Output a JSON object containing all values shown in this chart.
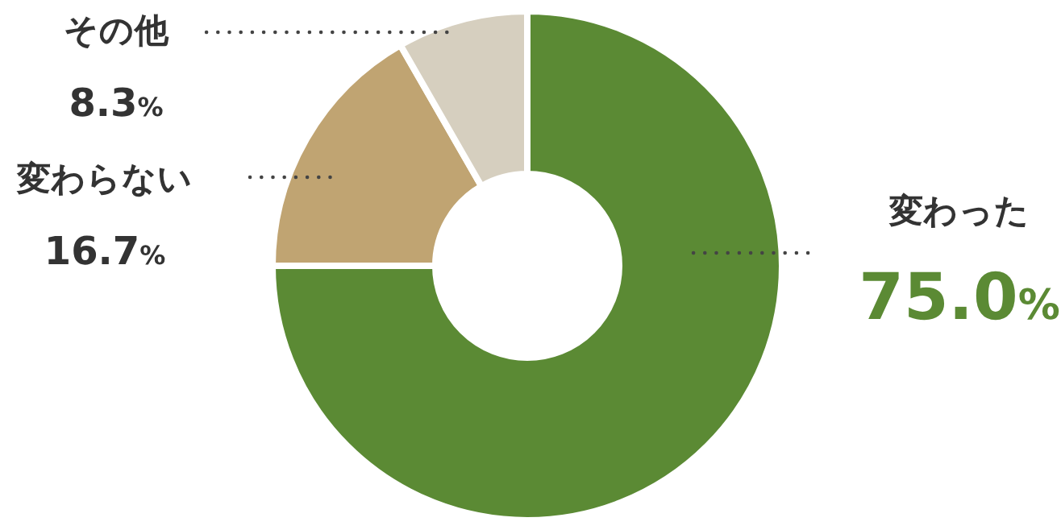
{
  "chart_data": {
    "type": "donut",
    "categories": [
      "変わった",
      "変わらない",
      "その他"
    ],
    "values": [
      75.0,
      16.7,
      8.3
    ],
    "value_labels": [
      "75.0%",
      "16.7%",
      "8.3%"
    ],
    "colors": [
      "#5b8a34",
      "#c0a472",
      "#d6cfbf"
    ]
  }
}
